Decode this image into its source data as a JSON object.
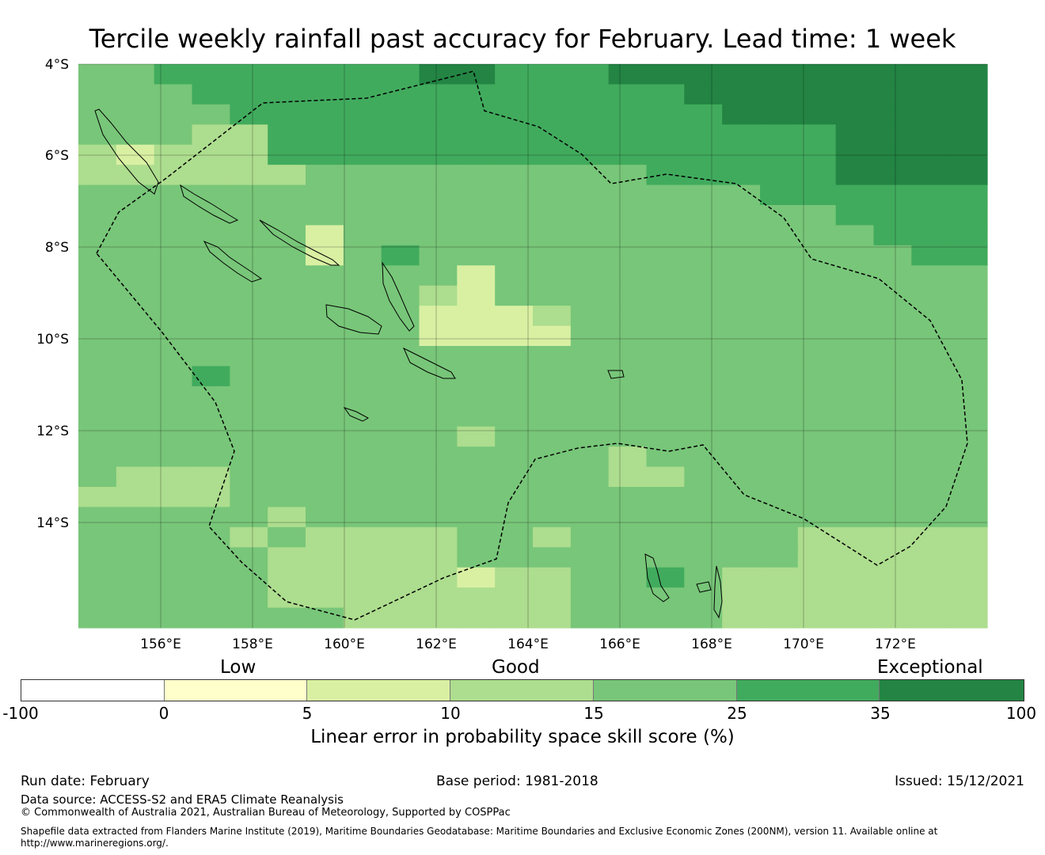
{
  "title": "Tercile weekly rainfall past accuracy for February. Lead time: 1 week",
  "map": {
    "lat_labels": [
      "4°S",
      "6°S",
      "8°S",
      "10°S",
      "12°S",
      "14°S"
    ],
    "lon_labels": [
      "156°E",
      "158°E",
      "160°E",
      "162°E",
      "164°E",
      "166°E",
      "168°E",
      "170°E",
      "172°E"
    ],
    "grid_values": [
      [
        15,
        15,
        25,
        25,
        25,
        25,
        25,
        25,
        25,
        35,
        35,
        25,
        25,
        25,
        35,
        35,
        35,
        35,
        35,
        35,
        35,
        35,
        35,
        35
      ],
      [
        15,
        15,
        15,
        25,
        25,
        25,
        25,
        25,
        25,
        25,
        25,
        25,
        25,
        25,
        25,
        25,
        35,
        35,
        35,
        35,
        35,
        35,
        35,
        35
      ],
      [
        15,
        15,
        15,
        15,
        25,
        25,
        25,
        25,
        25,
        25,
        25,
        25,
        25,
        25,
        25,
        25,
        25,
        35,
        35,
        35,
        35,
        35,
        35,
        35
      ],
      [
        15,
        15,
        15,
        10,
        10,
        25,
        25,
        25,
        25,
        25,
        25,
        25,
        25,
        25,
        25,
        25,
        25,
        25,
        25,
        25,
        35,
        35,
        35,
        35
      ],
      [
        10,
        5,
        10,
        10,
        10,
        25,
        25,
        25,
        25,
        25,
        25,
        25,
        25,
        25,
        25,
        25,
        25,
        25,
        25,
        25,
        35,
        35,
        35,
        35
      ],
      [
        10,
        10,
        10,
        10,
        10,
        10,
        15,
        15,
        15,
        15,
        15,
        15,
        15,
        15,
        15,
        25,
        25,
        25,
        25,
        25,
        35,
        35,
        35,
        35
      ],
      [
        15,
        15,
        15,
        15,
        15,
        15,
        15,
        15,
        15,
        15,
        15,
        15,
        15,
        15,
        15,
        15,
        15,
        15,
        25,
        25,
        25,
        25,
        25,
        25
      ],
      [
        15,
        15,
        15,
        15,
        15,
        15,
        15,
        15,
        15,
        15,
        15,
        15,
        15,
        15,
        15,
        15,
        15,
        15,
        15,
        15,
        25,
        25,
        25,
        25
      ],
      [
        15,
        15,
        15,
        15,
        15,
        15,
        5,
        15,
        15,
        15,
        15,
        15,
        15,
        15,
        15,
        15,
        15,
        15,
        15,
        15,
        15,
        25,
        25,
        25
      ],
      [
        15,
        15,
        15,
        15,
        15,
        15,
        5,
        15,
        25,
        15,
        15,
        15,
        15,
        15,
        15,
        15,
        15,
        15,
        15,
        15,
        15,
        15,
        25,
        25
      ],
      [
        15,
        15,
        15,
        15,
        15,
        15,
        15,
        15,
        15,
        15,
        5,
        15,
        15,
        15,
        15,
        15,
        15,
        15,
        15,
        15,
        15,
        15,
        15,
        15
      ],
      [
        15,
        15,
        15,
        15,
        15,
        15,
        15,
        15,
        15,
        10,
        5,
        15,
        15,
        15,
        15,
        15,
        15,
        15,
        15,
        15,
        15,
        15,
        15,
        15
      ],
      [
        15,
        15,
        15,
        15,
        15,
        15,
        15,
        15,
        15,
        5,
        5,
        5,
        10,
        15,
        15,
        15,
        15,
        15,
        15,
        15,
        15,
        15,
        15,
        15
      ],
      [
        15,
        15,
        15,
        15,
        15,
        15,
        15,
        15,
        15,
        5,
        5,
        5,
        5,
        15,
        15,
        15,
        15,
        15,
        15,
        15,
        15,
        15,
        15,
        15
      ],
      [
        15,
        15,
        15,
        15,
        15,
        15,
        15,
        15,
        15,
        15,
        15,
        15,
        15,
        15,
        15,
        15,
        15,
        15,
        15,
        15,
        15,
        15,
        15,
        15
      ],
      [
        15,
        15,
        15,
        25,
        15,
        15,
        15,
        15,
        15,
        15,
        15,
        15,
        15,
        15,
        15,
        15,
        15,
        15,
        15,
        15,
        15,
        15,
        15,
        15
      ],
      [
        15,
        15,
        15,
        15,
        15,
        15,
        15,
        15,
        15,
        15,
        15,
        15,
        15,
        15,
        15,
        15,
        15,
        15,
        15,
        15,
        15,
        15,
        15,
        15
      ],
      [
        15,
        15,
        15,
        15,
        15,
        15,
        15,
        15,
        15,
        15,
        15,
        15,
        15,
        15,
        15,
        15,
        15,
        15,
        15,
        15,
        15,
        15,
        15,
        15
      ],
      [
        15,
        15,
        15,
        15,
        15,
        15,
        15,
        15,
        15,
        15,
        10,
        15,
        15,
        15,
        15,
        15,
        15,
        15,
        15,
        15,
        15,
        15,
        15,
        15
      ],
      [
        15,
        15,
        15,
        15,
        15,
        15,
        15,
        15,
        15,
        15,
        15,
        15,
        15,
        15,
        10,
        15,
        15,
        15,
        15,
        15,
        15,
        15,
        15,
        15
      ],
      [
        15,
        10,
        10,
        10,
        15,
        15,
        15,
        15,
        15,
        15,
        15,
        15,
        15,
        15,
        10,
        10,
        15,
        15,
        15,
        15,
        15,
        15,
        15,
        15
      ],
      [
        10,
        10,
        10,
        10,
        15,
        15,
        15,
        15,
        15,
        15,
        15,
        15,
        15,
        15,
        15,
        15,
        15,
        15,
        15,
        15,
        15,
        15,
        15,
        15
      ],
      [
        15,
        15,
        15,
        15,
        15,
        10,
        15,
        15,
        15,
        15,
        15,
        15,
        15,
        15,
        15,
        15,
        15,
        15,
        15,
        15,
        15,
        15,
        15,
        15
      ],
      [
        15,
        15,
        15,
        15,
        10,
        15,
        10,
        10,
        10,
        10,
        15,
        15,
        10,
        15,
        15,
        15,
        15,
        15,
        15,
        10,
        10,
        10,
        10,
        10
      ],
      [
        15,
        15,
        15,
        15,
        15,
        10,
        10,
        10,
        10,
        10,
        15,
        15,
        15,
        15,
        15,
        15,
        15,
        15,
        15,
        10,
        10,
        10,
        10,
        10
      ],
      [
        15,
        15,
        15,
        15,
        15,
        10,
        10,
        10,
        10,
        10,
        5,
        10,
        10,
        15,
        15,
        25,
        15,
        10,
        10,
        10,
        10,
        10,
        10,
        10
      ],
      [
        15,
        15,
        15,
        15,
        15,
        10,
        10,
        10,
        10,
        10,
        10,
        10,
        10,
        15,
        15,
        15,
        15,
        10,
        10,
        10,
        10,
        10,
        10,
        10
      ],
      [
        15,
        15,
        15,
        15,
        15,
        15,
        15,
        10,
        10,
        10,
        10,
        10,
        10,
        15,
        15,
        15,
        15,
        10,
        10,
        10,
        10,
        10,
        10,
        10
      ]
    ]
  },
  "legend": {
    "category_labels": [
      "Low",
      "Good",
      "Exceptional"
    ],
    "tick_labels": [
      "-100",
      "0",
      "5",
      "10",
      "15",
      "25",
      "35",
      "100"
    ],
    "colors": [
      "#ffffff",
      "#ffffcc",
      "#d9f0a3",
      "#addd8e",
      "#78c679",
      "#41ab5d",
      "#238443"
    ],
    "axis_label": "Linear error in probability space skill score (%)"
  },
  "footer": {
    "run_date": "Run date: February",
    "base_period": "Base period: 1981-2018",
    "issued": "Issued: 15/12/2021",
    "data_source": "Data source: ACCESS-S2 and ERA5 Climate Reanalysis",
    "copyright": "© Commonwealth of Australia 2021, Australian Bureau of Meteorology, Supported by COSPPac",
    "shapefile_line1": "Shapefile data extracted from Flanders Marine Institute (2019), Maritime Boundaries Geodatabase: Maritime Boundaries and Exclusive Economic Zones (200NM), version 11. Available online at",
    "shapefile_line2": "http://www.marineregions.org/."
  }
}
